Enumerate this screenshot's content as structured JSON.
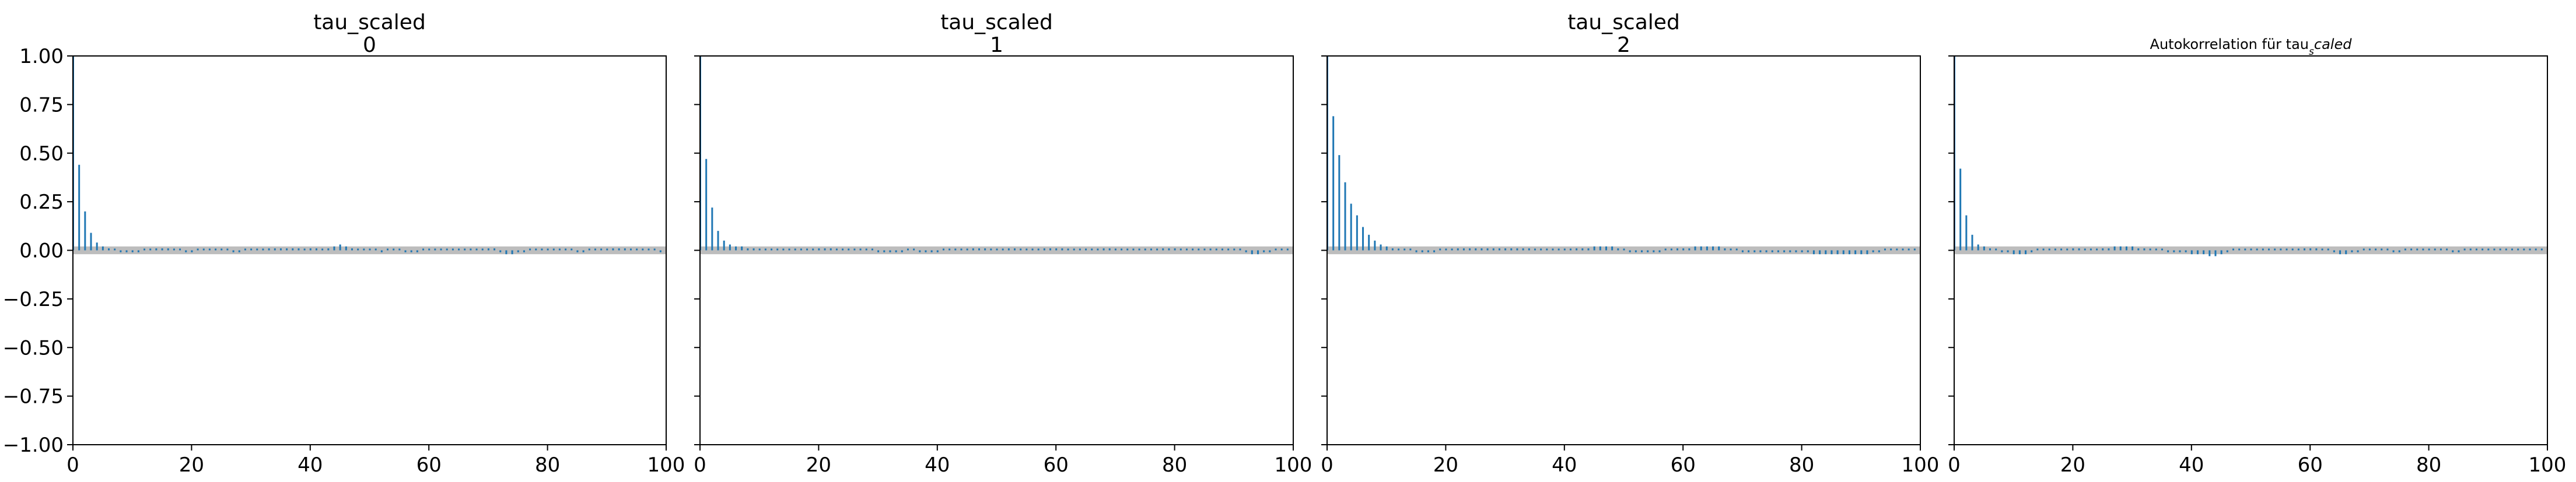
{
  "figure": {
    "background": "#ffffff"
  },
  "style": {
    "stem_color": "#1f77b4",
    "band_color": "#bdbdbd",
    "axis_color": "#000000"
  },
  "chart_data": [
    {
      "type": "bar",
      "kind": "autocorrelation",
      "title": "tau_scaled",
      "subtitle": "0",
      "xlim": [
        0,
        100
      ],
      "ylim": [
        -1.0,
        1.0
      ],
      "xticks": [
        0,
        20,
        40,
        60,
        80,
        100
      ],
      "yticks": [
        -1.0,
        -0.75,
        -0.5,
        -0.25,
        0.0,
        0.25,
        0.5,
        0.75,
        1.0
      ],
      "ytick_labels": [
        "−1.00",
        "−0.75",
        "−0.50",
        "−0.25",
        "0.00",
        "0.25",
        "0.50",
        "0.75",
        "1.00"
      ],
      "show_yticklabels": true,
      "band": [
        -0.02,
        0.02
      ],
      "lags": [
        0,
        1,
        2,
        3,
        4,
        5,
        6,
        7,
        8,
        9,
        10,
        11,
        12,
        13,
        14,
        15,
        16,
        17,
        18,
        19,
        20,
        21,
        22,
        23,
        24,
        25,
        26,
        27,
        28,
        29,
        30,
        31,
        32,
        33,
        34,
        35,
        36,
        37,
        38,
        39,
        40,
        41,
        42,
        43,
        44,
        45,
        46,
        47,
        48,
        49,
        50,
        51,
        52,
        53,
        54,
        55,
        56,
        57,
        58,
        59,
        60,
        61,
        62,
        63,
        64,
        65,
        66,
        67,
        68,
        69,
        70,
        71,
        72,
        73,
        74,
        75,
        76,
        77,
        78,
        79,
        80,
        81,
        82,
        83,
        84,
        85,
        86,
        87,
        88,
        89,
        90,
        91,
        92,
        93,
        94,
        95,
        96,
        97,
        98,
        99
      ],
      "values": [
        1.0,
        0.44,
        0.2,
        0.09,
        0.04,
        0.02,
        0.01,
        0.0,
        -0.01,
        -0.01,
        -0.01,
        -0.01,
        0.0,
        0.0,
        0.01,
        0.01,
        0.01,
        0.0,
        0.0,
        -0.01,
        -0.01,
        0.0,
        0.0,
        0.0,
        0.0,
        0.0,
        0.0,
        -0.01,
        -0.01,
        0.0,
        0.0,
        0.0,
        0.0,
        0.01,
        0.01,
        0.01,
        0.01,
        0.01,
        0.01,
        0.0,
        0.01,
        0.01,
        0.0,
        0.01,
        0.02,
        0.03,
        0.02,
        0.01,
        0.0,
        0.0,
        0.0,
        0.0,
        -0.01,
        0.0,
        0.0,
        0.0,
        -0.01,
        -0.01,
        -0.01,
        0.0,
        0.0,
        0.0,
        0.0,
        0.0,
        0.0,
        0.0,
        0.0,
        0.0,
        0.0,
        0.0,
        0.01,
        0.01,
        -0.01,
        -0.02,
        -0.02,
        -0.01,
        -0.01,
        0.0,
        0.0,
        0.0,
        0.0,
        0.0,
        0.0,
        0.0,
        0.0,
        -0.01,
        -0.01,
        0.0,
        0.0,
        0.0,
        0.0,
        0.01,
        0.01,
        0.01,
        0.0,
        0.0,
        0.0,
        0.0,
        0.0,
        -0.01
      ]
    },
    {
      "type": "bar",
      "kind": "autocorrelation",
      "title": "tau_scaled",
      "subtitle": "1",
      "xlim": [
        0,
        100
      ],
      "ylim": [
        -1.0,
        1.0
      ],
      "xticks": [
        0,
        20,
        40,
        60,
        80,
        100
      ],
      "yticks": [
        -1.0,
        -0.75,
        -0.5,
        -0.25,
        0.0,
        0.25,
        0.5,
        0.75,
        1.0
      ],
      "show_yticklabels": false,
      "band": [
        -0.02,
        0.02
      ],
      "lags": [
        0,
        1,
        2,
        3,
        4,
        5,
        6,
        7,
        8,
        9,
        10,
        11,
        12,
        13,
        14,
        15,
        16,
        17,
        18,
        19,
        20,
        21,
        22,
        23,
        24,
        25,
        26,
        27,
        28,
        29,
        30,
        31,
        32,
        33,
        34,
        35,
        36,
        37,
        38,
        39,
        40,
        41,
        42,
        43,
        44,
        45,
        46,
        47,
        48,
        49,
        50,
        51,
        52,
        53,
        54,
        55,
        56,
        57,
        58,
        59,
        60,
        61,
        62,
        63,
        64,
        65,
        66,
        67,
        68,
        69,
        70,
        71,
        72,
        73,
        74,
        75,
        76,
        77,
        78,
        79,
        80,
        81,
        82,
        83,
        84,
        85,
        86,
        87,
        88,
        89,
        90,
        91,
        92,
        93,
        94,
        95,
        96,
        97,
        98,
        99
      ],
      "values": [
        1.0,
        0.47,
        0.22,
        0.1,
        0.05,
        0.03,
        0.02,
        0.02,
        0.01,
        0.01,
        0.0,
        0.0,
        0.0,
        0.0,
        0.0,
        0.0,
        0.0,
        0.0,
        0.0,
        0.0,
        0.01,
        0.01,
        0.01,
        0.0,
        0.0,
        0.0,
        0.0,
        0.0,
        0.0,
        0.0,
        -0.01,
        -0.01,
        -0.01,
        -0.01,
        -0.01,
        0.0,
        0.0,
        -0.01,
        -0.01,
        -0.01,
        -0.01,
        0.0,
        0.0,
        0.0,
        0.0,
        0.0,
        0.01,
        0.01,
        0.01,
        0.0,
        0.0,
        0.0,
        0.01,
        0.01,
        0.0,
        0.0,
        0.0,
        0.0,
        0.01,
        0.01,
        0.01,
        0.01,
        0.0,
        0.0,
        0.0,
        0.0,
        0.0,
        0.0,
        0.01,
        0.01,
        0.0,
        0.0,
        0.0,
        0.0,
        0.0,
        0.0,
        0.0,
        0.0,
        0.01,
        0.01,
        0.01,
        0.0,
        0.0,
        0.0,
        0.0,
        0.0,
        0.0,
        0.0,
        0.0,
        0.0,
        0.0,
        0.0,
        -0.01,
        -0.02,
        -0.02,
        -0.01,
        -0.01,
        0.0,
        0.0,
        0.0
      ]
    },
    {
      "type": "bar",
      "kind": "autocorrelation",
      "title": "tau_scaled",
      "subtitle": "2",
      "xlim": [
        0,
        100
      ],
      "ylim": [
        -1.0,
        1.0
      ],
      "xticks": [
        0,
        20,
        40,
        60,
        80,
        100
      ],
      "yticks": [
        -1.0,
        -0.75,
        -0.5,
        -0.25,
        0.0,
        0.25,
        0.5,
        0.75,
        1.0
      ],
      "show_yticklabels": false,
      "band": [
        -0.02,
        0.02
      ],
      "lags": [
        0,
        1,
        2,
        3,
        4,
        5,
        6,
        7,
        8,
        9,
        10,
        11,
        12,
        13,
        14,
        15,
        16,
        17,
        18,
        19,
        20,
        21,
        22,
        23,
        24,
        25,
        26,
        27,
        28,
        29,
        30,
        31,
        32,
        33,
        34,
        35,
        36,
        37,
        38,
        39,
        40,
        41,
        42,
        43,
        44,
        45,
        46,
        47,
        48,
        49,
        50,
        51,
        52,
        53,
        54,
        55,
        56,
        57,
        58,
        59,
        60,
        61,
        62,
        63,
        64,
        65,
        66,
        67,
        68,
        69,
        70,
        71,
        72,
        73,
        74,
        75,
        76,
        77,
        78,
        79,
        80,
        81,
        82,
        83,
        84,
        85,
        86,
        87,
        88,
        89,
        90,
        91,
        92,
        93,
        94,
        95,
        96,
        97,
        98,
        99
      ],
      "values": [
        1.0,
        0.69,
        0.49,
        0.35,
        0.24,
        0.18,
        0.12,
        0.08,
        0.05,
        0.03,
        0.02,
        0.01,
        0.0,
        0.0,
        0.0,
        -0.01,
        -0.01,
        -0.01,
        -0.01,
        0.0,
        0.0,
        0.0,
        0.01,
        0.01,
        0.01,
        0.01,
        0.01,
        0.01,
        0.01,
        0.01,
        0.01,
        0.01,
        0.01,
        0.01,
        0.01,
        0.0,
        0.0,
        0.0,
        0.0,
        0.0,
        0.0,
        0.0,
        0.01,
        0.01,
        0.01,
        0.02,
        0.02,
        0.02,
        0.02,
        0.01,
        0.0,
        -0.01,
        -0.01,
        -0.01,
        -0.01,
        -0.01,
        -0.01,
        0.0,
        0.0,
        0.01,
        0.01,
        0.01,
        0.02,
        0.02,
        0.02,
        0.02,
        0.02,
        0.01,
        0.0,
        0.0,
        -0.01,
        -0.01,
        -0.01,
        -0.01,
        -0.01,
        -0.01,
        -0.01,
        -0.01,
        -0.01,
        -0.01,
        -0.01,
        -0.01,
        -0.02,
        -0.02,
        -0.02,
        -0.02,
        -0.02,
        -0.02,
        -0.02,
        -0.02,
        -0.02,
        -0.02,
        -0.01,
        -0.01,
        0.0,
        0.0,
        0.0,
        0.0,
        0.0,
        0.0
      ]
    },
    {
      "type": "bar",
      "kind": "autocorrelation",
      "title": "Autokorrelation für tau",
      "title_subscript": "s",
      "title_suffix": "caled",
      "xlim": [
        0,
        100
      ],
      "ylim": [
        -1.0,
        1.0
      ],
      "xticks": [
        0,
        20,
        40,
        60,
        80,
        100
      ],
      "yticks": [
        -1.0,
        -0.75,
        -0.5,
        -0.25,
        0.0,
        0.25,
        0.5,
        0.75,
        1.0
      ],
      "show_yticklabels": false,
      "band": [
        -0.02,
        0.02
      ],
      "lags": [
        0,
        1,
        2,
        3,
        4,
        5,
        6,
        7,
        8,
        9,
        10,
        11,
        12,
        13,
        14,
        15,
        16,
        17,
        18,
        19,
        20,
        21,
        22,
        23,
        24,
        25,
        26,
        27,
        28,
        29,
        30,
        31,
        32,
        33,
        34,
        35,
        36,
        37,
        38,
        39,
        40,
        41,
        42,
        43,
        44,
        45,
        46,
        47,
        48,
        49,
        50,
        51,
        52,
        53,
        54,
        55,
        56,
        57,
        58,
        59,
        60,
        61,
        62,
        63,
        64,
        65,
        66,
        67,
        68,
        69,
        70,
        71,
        72,
        73,
        74,
        75,
        76,
        77,
        78,
        79,
        80,
        81,
        82,
        83,
        84,
        85,
        86,
        87,
        88,
        89,
        90,
        91,
        92,
        93,
        94,
        95,
        96,
        97,
        98,
        99
      ],
      "values": [
        1.0,
        0.42,
        0.18,
        0.08,
        0.03,
        0.02,
        0.01,
        0.0,
        -0.01,
        -0.01,
        -0.02,
        -0.02,
        -0.02,
        -0.01,
        0.0,
        0.0,
        0.0,
        0.0,
        0.0,
        0.0,
        0.01,
        0.01,
        0.0,
        0.0,
        0.0,
        0.01,
        0.01,
        0.02,
        0.02,
        0.02,
        0.02,
        0.01,
        0.01,
        0.0,
        0.0,
        0.0,
        -0.01,
        -0.01,
        -0.01,
        -0.01,
        -0.02,
        -0.02,
        -0.02,
        -0.03,
        -0.03,
        -0.02,
        -0.01,
        0.0,
        0.0,
        0.0,
        0.0,
        0.0,
        0.0,
        0.0,
        0.0,
        0.0,
        0.0,
        0.0,
        0.0,
        0.01,
        0.01,
        0.01,
        0.0,
        0.0,
        -0.01,
        -0.02,
        -0.02,
        -0.01,
        -0.01,
        0.0,
        0.0,
        0.0,
        0.0,
        0.0,
        -0.01,
        -0.01,
        0.0,
        0.0,
        0.0,
        0.0,
        0.0,
        0.0,
        0.0,
        0.0,
        -0.01,
        -0.01,
        0.0,
        0.0,
        0.0,
        0.0,
        0.0,
        0.0,
        0.0,
        0.0,
        0.0,
        0.0,
        0.0,
        0.0,
        0.0,
        0.0
      ]
    }
  ]
}
